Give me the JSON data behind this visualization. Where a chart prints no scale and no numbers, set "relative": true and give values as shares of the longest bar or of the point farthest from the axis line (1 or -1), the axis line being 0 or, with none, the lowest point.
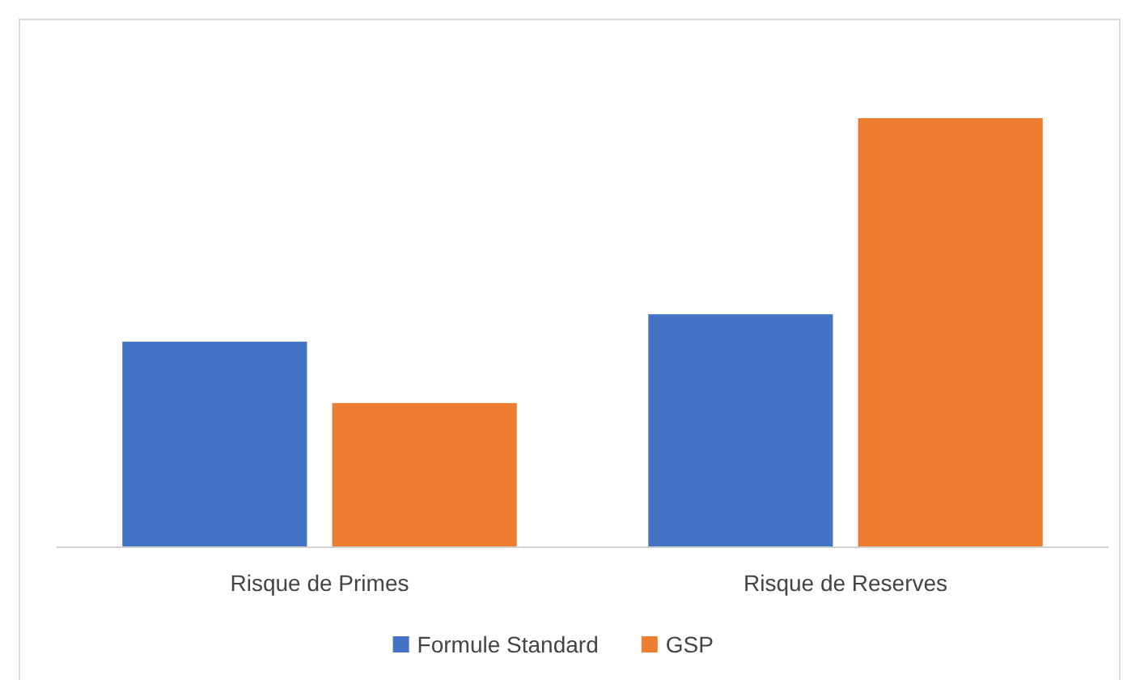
{
  "chart_data": {
    "type": "bar",
    "relative": true,
    "categories": [
      "Risque de Primes",
      "Risque de Reserves"
    ],
    "series": [
      {
        "name": "Formule Standard",
        "color": "#4472c4",
        "values": [
          0.479,
          0.543
        ]
      },
      {
        "name": "GSP",
        "color": "#ed7d31",
        "values": [
          0.336,
          1
        ]
      }
    ],
    "legend": "bottom"
  }
}
